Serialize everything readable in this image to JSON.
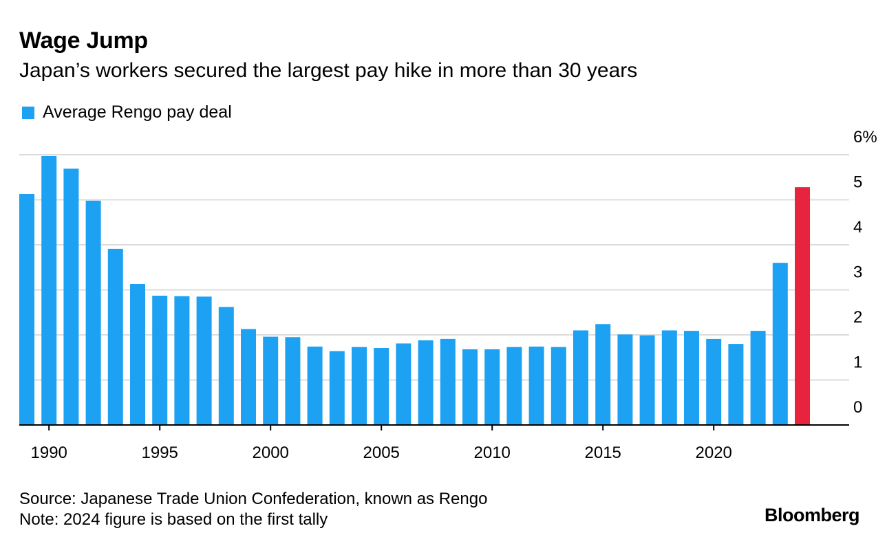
{
  "header": {
    "title": "Wage Jump",
    "subtitle": "Japan’s workers secured the largest pay hike in more than 30 years"
  },
  "footer": {
    "source": "Source: Japanese Trade Union Confederation, known as Rengo",
    "note": "Note: 2024 figure is based on the first tally",
    "brand": "Bloomberg"
  },
  "colors": {
    "bar": "#1da1f2",
    "highlight": "#e8233d",
    "grid": "#dcdcdc",
    "axis": "#000000"
  },
  "chart_data": {
    "type": "bar",
    "title": "Wage Jump",
    "subtitle": "Japan’s workers secured the largest pay hike in more than 30 years",
    "legend": [
      "Average Rengo pay deal"
    ],
    "legend_position": "top-left",
    "xlabel": "",
    "ylabel": "",
    "y_unit_label": "6%",
    "ylim": [
      0,
      6
    ],
    "yticks": [
      0,
      1,
      2,
      3,
      4,
      5,
      6
    ],
    "ytick_labels": [
      "0",
      "1",
      "2",
      "3",
      "4",
      "5",
      "6%"
    ],
    "y_axis_side": "right",
    "grid": true,
    "xticks": [
      1990,
      1995,
      2000,
      2005,
      2010,
      2015,
      2020
    ],
    "xtick_labels": [
      "1990",
      "1995",
      "2000",
      "2005",
      "2010",
      "2015",
      "2020"
    ],
    "highlight_category": 2024,
    "series": [
      {
        "name": "Average Rengo pay deal",
        "x": [
          1989,
          1990,
          1991,
          1992,
          1993,
          1994,
          1995,
          1996,
          1997,
          1998,
          1999,
          2000,
          2001,
          2002,
          2003,
          2004,
          2005,
          2006,
          2007,
          2008,
          2009,
          2010,
          2011,
          2012,
          2013,
          2014,
          2015,
          2016,
          2017,
          2018,
          2019,
          2020,
          2021,
          2022,
          2023,
          2024
        ],
        "values": [
          5.13,
          5.97,
          5.69,
          4.98,
          3.91,
          3.13,
          2.87,
          2.86,
          2.85,
          2.62,
          2.13,
          1.96,
          1.95,
          1.74,
          1.64,
          1.73,
          1.71,
          1.81,
          1.88,
          1.91,
          1.68,
          1.68,
          1.73,
          1.74,
          1.73,
          2.1,
          2.24,
          2.01,
          1.99,
          2.1,
          2.09,
          1.91,
          1.8,
          2.09,
          3.6,
          5.28
        ]
      }
    ]
  }
}
